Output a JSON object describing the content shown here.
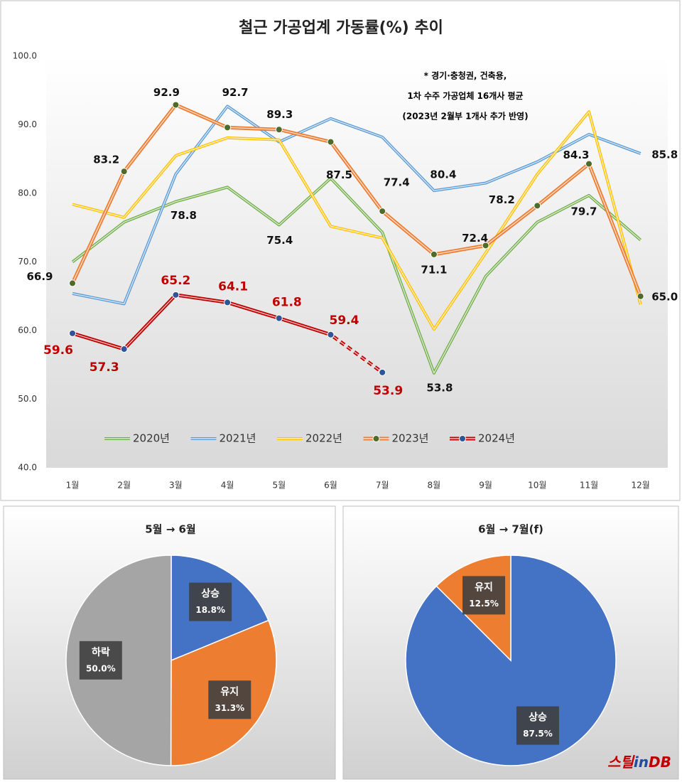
{
  "chart_data": [
    {
      "type": "line",
      "title": "철근 가공업계 가동률(%) 추이",
      "annotations": [
        "* 경기·충청권, 건축용,",
        "1차 수주 가공업체 16개사 평균",
        "(2023년 2월부 1개사 추가 반영)"
      ],
      "categories": [
        "1월",
        "2월",
        "3월",
        "4월",
        "5월",
        "6월",
        "7월",
        "8월",
        "9월",
        "10월",
        "11월",
        "12월"
      ],
      "ylim": [
        40,
        100
      ],
      "yticks": [
        {
          "value": 40,
          "label": "40.0"
        },
        {
          "value": 50,
          "label": "50.0"
        },
        {
          "value": 60,
          "label": "60.0"
        },
        {
          "value": 70,
          "label": "70.0"
        },
        {
          "value": 80,
          "label": "80.0"
        },
        {
          "value": 90,
          "label": "90.0"
        },
        {
          "value": 100,
          "label": "100.0"
        }
      ],
      "grid": false,
      "legend": "bottom",
      "series": [
        {
          "name": "2020년",
          "color": "#70ad47",
          "values": [
            70.0,
            75.8,
            78.8,
            80.9,
            75.4,
            82.2,
            74.3,
            53.8,
            67.9,
            75.8,
            79.7,
            73.2
          ],
          "value_labels": [
            null,
            null,
            "78.8",
            null,
            "75.4",
            null,
            null,
            "53.8",
            null,
            null,
            "79.7",
            null
          ]
        },
        {
          "name": "2021년",
          "color": "#5b9bd5",
          "values": [
            65.4,
            63.9,
            82.8,
            92.7,
            87.5,
            90.9,
            88.2,
            80.4,
            81.5,
            84.6,
            88.6,
            85.8
          ],
          "value_labels": [
            null,
            null,
            null,
            "92.7",
            null,
            null,
            null,
            "80.4",
            null,
            null,
            null,
            "85.8"
          ]
        },
        {
          "name": "2022년",
          "color": "#ffc000",
          "values": [
            78.4,
            76.5,
            85.5,
            88.1,
            87.8,
            75.2,
            73.5,
            60.2,
            71.3,
            82.8,
            91.9,
            63.8
          ]
        },
        {
          "name": "2023년",
          "color": "#ed7d31",
          "marker": true,
          "values": [
            66.9,
            83.2,
            92.9,
            89.6,
            89.3,
            87.5,
            77.4,
            71.1,
            72.4,
            78.2,
            84.3,
            65.0
          ],
          "value_labels": [
            "66.9",
            "83.2",
            "92.9",
            null,
            "89.3",
            "87.5",
            "77.4",
            "71.1",
            "72.4",
            "78.2",
            "84.3",
            "65.0"
          ]
        },
        {
          "name": "2024년",
          "color": "#c00000",
          "marker": true,
          "dash_from": 5,
          "label_color": "#c00000",
          "values": [
            59.6,
            57.3,
            65.2,
            64.1,
            61.8,
            59.4,
            53.9,
            null,
            null,
            null,
            null,
            null
          ],
          "value_labels": [
            "59.6",
            "57.3",
            "65.2",
            "64.1",
            "61.8",
            "59.4",
            "53.9",
            null,
            null,
            null,
            null,
            null
          ]
        }
      ]
    },
    {
      "type": "pie",
      "title": "5월 → 6월",
      "categories": [
        "상승",
        "유지",
        "하락"
      ],
      "values": [
        18.8,
        31.3,
        50.0
      ],
      "value_labels": [
        "18.8%",
        "31.3%",
        "50.0%"
      ],
      "colors": [
        "#4472c4",
        "#ed7d31",
        "#a5a5a5"
      ]
    },
    {
      "type": "pie",
      "title": "6월 → 7월(f)",
      "categories": [
        "상승",
        "유지"
      ],
      "values": [
        87.5,
        12.5
      ],
      "value_labels": [
        "87.5%",
        "12.5%"
      ],
      "colors": [
        "#4472c4",
        "#ed7d31"
      ],
      "logo": [
        "스틸",
        "in",
        "DB"
      ]
    }
  ]
}
